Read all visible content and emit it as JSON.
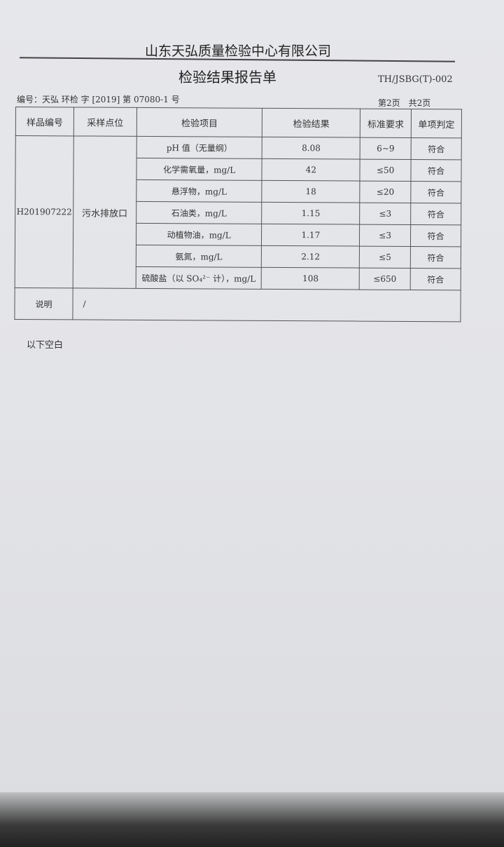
{
  "company": "山东天弘质量检验中心有限公司",
  "title": "检验结果报告单",
  "form_code": "TH/JSBG(T)-002",
  "report_number": "编号：天弘 环检 字 [2019] 第 07080-1 号",
  "page_info": "第2页　共2页",
  "headers": [
    "样品编号",
    "采样点位",
    "检验项目",
    "检验结果",
    "标准要求",
    "单项判定"
  ],
  "sample_id": "H201907222",
  "sampling_point": "污水排放口",
  "rows": [
    {
      "item": "pH 值（无量纲）",
      "result": "8.08",
      "standard": "6~9",
      "verdict": "符合"
    },
    {
      "item": "化学需氧量，mg/L",
      "result": "42",
      "standard": "≤50",
      "verdict": "符合"
    },
    {
      "item": "悬浮物，mg/L",
      "result": "18",
      "standard": "≤20",
      "verdict": "符合"
    },
    {
      "item": "石油类，mg/L",
      "result": "1.15",
      "standard": "≤3",
      "verdict": "符合"
    },
    {
      "item": "动植物油，mg/L",
      "result": "1.17",
      "standard": "≤3",
      "verdict": "符合"
    },
    {
      "item": "氨氮，mg/L",
      "result": "2.12",
      "standard": "≤5",
      "verdict": "符合"
    },
    {
      "item": "硫酸盐（以 SO₄²⁻ 计），mg/L",
      "result": "108",
      "standard": "≤650",
      "verdict": "符合"
    }
  ],
  "remarks_label": "说明",
  "remarks_value": "/",
  "blank_note": "以下空白"
}
